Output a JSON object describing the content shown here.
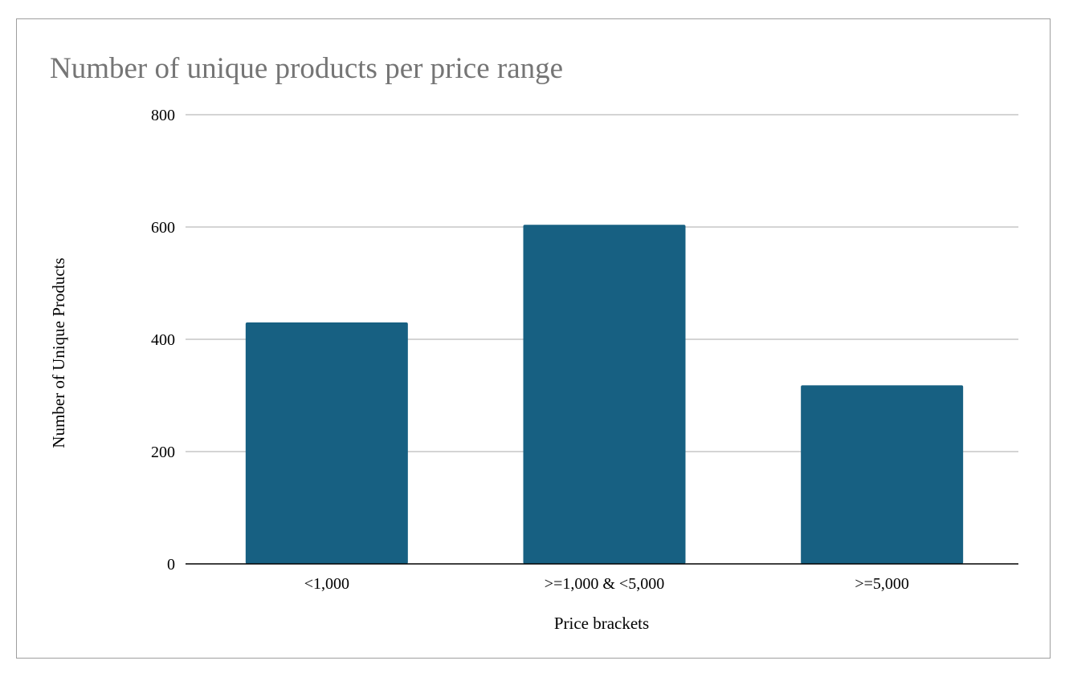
{
  "chart_data": {
    "type": "bar",
    "title": "Number of unique products per price range",
    "xlabel": "Price brackets",
    "ylabel": "Number of Unique Products",
    "categories": [
      "<1,000",
      ">=1,000 & <5,000",
      ">=5,000"
    ],
    "values": [
      430,
      604,
      318
    ],
    "ylim": [
      0,
      800
    ],
    "yticks": [
      "0",
      "200",
      "400",
      "600",
      "800"
    ],
    "grid": true,
    "legend": "none",
    "colors": {
      "bar": "#176082",
      "grid": "#c6c6c6",
      "axis": "#000000",
      "title": "#757575"
    }
  }
}
